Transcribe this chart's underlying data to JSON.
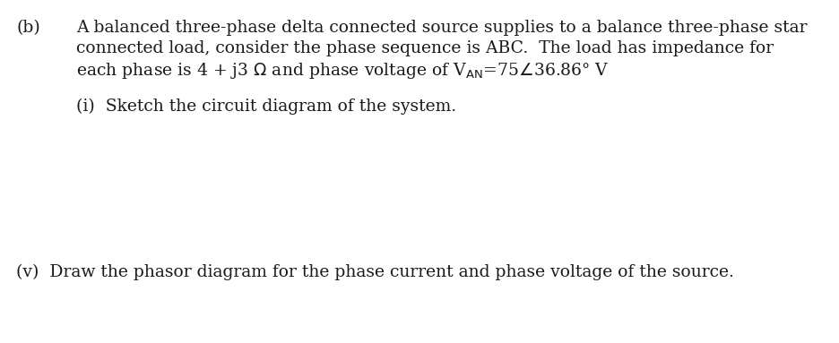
{
  "background_color": "#ffffff",
  "part_label": "(b)",
  "line1": "A balanced three-phase delta connected source supplies to a balance three-phase star",
  "line2": "connected load, consider the phase sequence is ABC.  The load has impedance for",
  "line3": "each phase is 4 + j3 $\\Omega$ and phase voltage of V$_{\\mathrm{AN}}$=75$\\angle$36.86° V",
  "sub_i": "(i)  Sketch the circuit diagram of the system.",
  "sub_v": "(v)  Draw the phasor diagram for the phase current and phase voltage of the source.",
  "font_size": 13.5,
  "font_family": "DejaVu Serif",
  "text_color": "#1a1a1a",
  "fig_width": 9.36,
  "fig_height": 3.83,
  "dpi": 100
}
